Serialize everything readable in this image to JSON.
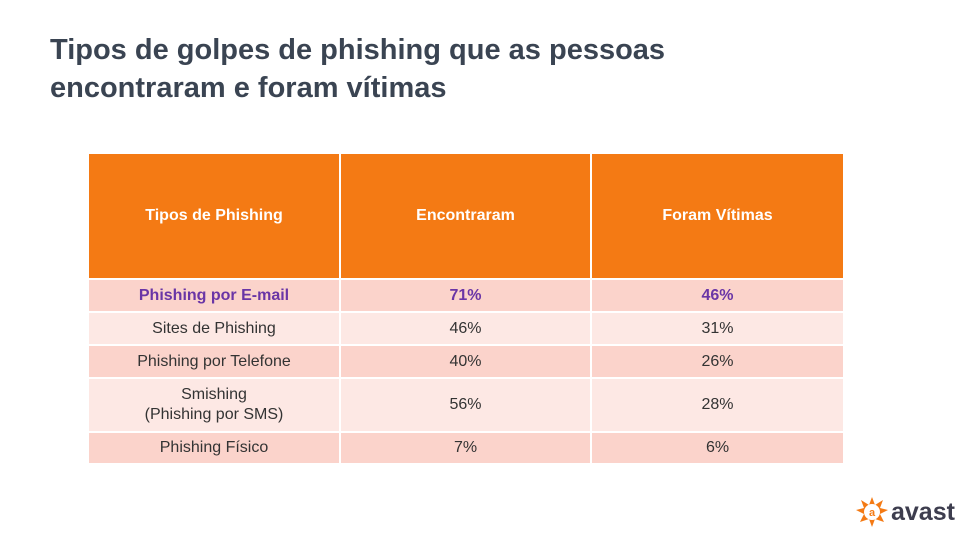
{
  "title": {
    "line1": "Tipos de golpes de phishing que as pessoas",
    "line2": "encontraram e foram vítimas"
  },
  "table": {
    "headers": [
      "Tipos de Phishing",
      "Encontraram",
      "Foram Vítimas"
    ],
    "rows": [
      {
        "type": "Phishing por E-mail",
        "encountered": "71%",
        "victims": "46%"
      },
      {
        "type": "Sites de Phishing",
        "encountered": "46%",
        "victims": "31%"
      },
      {
        "type": "Phishing por Telefone",
        "encountered": "40%",
        "victims": "26%"
      },
      {
        "type_line1": "Smishing",
        "type_line2": "(Phishing por SMS)",
        "encountered": "56%",
        "victims": "28%"
      },
      {
        "type": "Phishing Físico",
        "encountered": "7%",
        "victims": "6%"
      }
    ]
  },
  "colors": {
    "header_bg": "#f47a14",
    "highlight_text": "#6a35a6",
    "row_dark": "#fbd3cb",
    "row_light": "#fde8e4"
  },
  "logo": {
    "text": "avast",
    "icon": "avast-logo-icon"
  }
}
